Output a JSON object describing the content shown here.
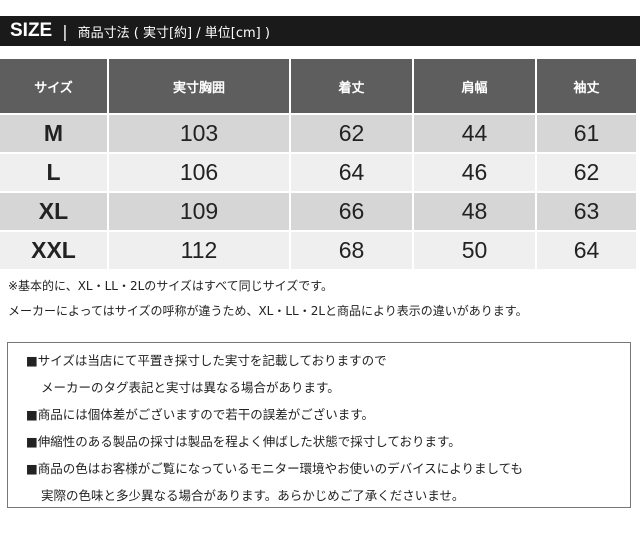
{
  "header": {
    "size_label": "SIZE",
    "separator": "|",
    "subtitle": "商品寸法 ( 実寸[約] / 単位[cm] )"
  },
  "table": {
    "columns": [
      "サイズ",
      "実寸胸囲",
      "着丈",
      "肩幅",
      "袖丈"
    ],
    "rows": [
      [
        "M",
        "103",
        "62",
        "44",
        "61"
      ],
      [
        "L",
        "106",
        "64",
        "46",
        "62"
      ],
      [
        "XL",
        "109",
        "66",
        "48",
        "63"
      ],
      [
        "XXL",
        "112",
        "68",
        "50",
        "64"
      ]
    ]
  },
  "notes": [
    "※基本的に、XL・LL・2Lのサイズはすべて同じサイズです。",
    "メーカーによってはサイズの呼称が違うため、XL・LL・2Lと商品により表示の違いがあります。"
  ],
  "disclaimer": [
    "■サイズは当店にて平置き採寸した実寸を記載しておりますので",
    "メーカーのタグ表記と実寸は異なる場合があります。",
    "■商品には個体差がございますので若干の誤差がございます。",
    "■伸縮性のある製品の採寸は製品を程よく伸ばした状態で採寸しております。",
    "■商品の色はお客様がご覧になっているモニター環境やお使いのデバイスによりましても",
    "実際の色味と多少異なる場合があります。あらかじめご了承くださいませ。"
  ]
}
